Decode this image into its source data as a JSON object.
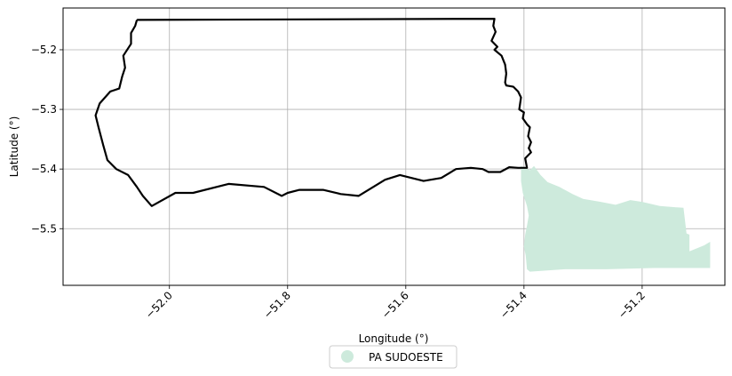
{
  "chart_data": {
    "type": "map",
    "xlabel": "Longitude (°)",
    "ylabel": "Latitude (°)",
    "xlim": [
      -52.18,
      -51.06
    ],
    "ylim": [
      -5.595,
      -5.13
    ],
    "grid": true,
    "legend_placement": "bottom-center",
    "x_ticks": [
      {
        "value": -52.0,
        "label": "−52.0"
      },
      {
        "value": -51.8,
        "label": "−51.8"
      },
      {
        "value": -51.6,
        "label": "−51.6"
      },
      {
        "value": -51.4,
        "label": "−51.4"
      },
      {
        "value": -51.2,
        "label": "−51.2"
      }
    ],
    "y_ticks": [
      {
        "value": -5.2,
        "label": "−5.2"
      },
      {
        "value": -5.3,
        "label": "−5.3"
      },
      {
        "value": -5.4,
        "label": "−5.4"
      },
      {
        "value": -5.5,
        "label": "−5.5"
      }
    ],
    "series": [
      {
        "name": "PA SUDOESTE",
        "kind": "filled-region",
        "color": "#cdeadc",
        "coords": [
          [
            -51.405,
            -5.395
          ],
          [
            -51.39,
            -5.402
          ],
          [
            -51.383,
            -5.395
          ],
          [
            -51.372,
            -5.41
          ],
          [
            -51.36,
            -5.422
          ],
          [
            -51.34,
            -5.43
          ],
          [
            -51.318,
            -5.442
          ],
          [
            -51.3,
            -5.45
          ],
          [
            -51.27,
            -5.455
          ],
          [
            -51.245,
            -5.46
          ],
          [
            -51.22,
            -5.452
          ],
          [
            -51.2,
            -5.455
          ],
          [
            -51.17,
            -5.462
          ],
          [
            -51.13,
            -5.465
          ],
          [
            -51.125,
            -5.508
          ],
          [
            -51.12,
            -5.51
          ],
          [
            -51.12,
            -5.538
          ],
          [
            -51.095,
            -5.528
          ],
          [
            -51.085,
            -5.522
          ],
          [
            -51.085,
            -5.566
          ],
          [
            -51.18,
            -5.566
          ],
          [
            -51.26,
            -5.568
          ],
          [
            -51.33,
            -5.568
          ],
          [
            -51.39,
            -5.572
          ],
          [
            -51.395,
            -5.568
          ],
          [
            -51.397,
            -5.545
          ],
          [
            -51.4,
            -5.53
          ],
          [
            -51.398,
            -5.51
          ],
          [
            -51.395,
            -5.495
          ],
          [
            -51.392,
            -5.478
          ],
          [
            -51.395,
            -5.462
          ],
          [
            -51.402,
            -5.44
          ],
          [
            -51.405,
            -5.42
          ]
        ]
      },
      {
        "name": "",
        "kind": "outline",
        "color": "#000000",
        "coords": [
          [
            -52.055,
            -5.15
          ],
          [
            -51.45,
            -5.148
          ],
          [
            -51.452,
            -5.16
          ],
          [
            -51.448,
            -5.17
          ],
          [
            -51.455,
            -5.185
          ],
          [
            -51.445,
            -5.195
          ],
          [
            -51.45,
            -5.2
          ],
          [
            -51.438,
            -5.21
          ],
          [
            -51.432,
            -5.225
          ],
          [
            -51.43,
            -5.24
          ],
          [
            -51.432,
            -5.255
          ],
          [
            -51.43,
            -5.26
          ],
          [
            -51.418,
            -5.262
          ],
          [
            -51.41,
            -5.27
          ],
          [
            -51.405,
            -5.28
          ],
          [
            -51.408,
            -5.3
          ],
          [
            -51.4,
            -5.305
          ],
          [
            -51.402,
            -5.315
          ],
          [
            -51.395,
            -5.325
          ],
          [
            -51.39,
            -5.33
          ],
          [
            -51.393,
            -5.345
          ],
          [
            -51.388,
            -5.355
          ],
          [
            -51.392,
            -5.365
          ],
          [
            -51.388,
            -5.372
          ],
          [
            -51.398,
            -5.382
          ],
          [
            -51.395,
            -5.398
          ],
          [
            -51.41,
            -5.398
          ],
          [
            -51.425,
            -5.397
          ],
          [
            -51.44,
            -5.405
          ],
          [
            -51.46,
            -5.405
          ],
          [
            -51.47,
            -5.4
          ],
          [
            -51.49,
            -5.398
          ],
          [
            -51.515,
            -5.4
          ],
          [
            -51.54,
            -5.415
          ],
          [
            -51.57,
            -5.42
          ],
          [
            -51.61,
            -5.41
          ],
          [
            -51.635,
            -5.418
          ],
          [
            -51.68,
            -5.445
          ],
          [
            -51.71,
            -5.442
          ],
          [
            -51.74,
            -5.435
          ],
          [
            -51.78,
            -5.435
          ],
          [
            -51.8,
            -5.44
          ],
          [
            -51.81,
            -5.445
          ],
          [
            -51.84,
            -5.43
          ],
          [
            -51.9,
            -5.425
          ],
          [
            -51.96,
            -5.44
          ],
          [
            -51.99,
            -5.44
          ],
          [
            -52.03,
            -5.462
          ],
          [
            -52.045,
            -5.445
          ],
          [
            -52.055,
            -5.43
          ],
          [
            -52.07,
            -5.41
          ],
          [
            -52.09,
            -5.4
          ],
          [
            -52.105,
            -5.385
          ],
          [
            -52.112,
            -5.36
          ],
          [
            -52.12,
            -5.33
          ],
          [
            -52.125,
            -5.31
          ],
          [
            -52.118,
            -5.29
          ],
          [
            -52.1,
            -5.27
          ],
          [
            -52.085,
            -5.265
          ],
          [
            -52.08,
            -5.245
          ],
          [
            -52.075,
            -5.23
          ],
          [
            -52.078,
            -5.21
          ],
          [
            -52.065,
            -5.19
          ],
          [
            -52.065,
            -5.172
          ],
          [
            -52.058,
            -5.16
          ],
          [
            -52.055,
            -5.15
          ]
        ]
      }
    ]
  },
  "legend": {
    "items": [
      {
        "label": "PA SUDOESTE",
        "color": "#cdeadc"
      }
    ]
  }
}
